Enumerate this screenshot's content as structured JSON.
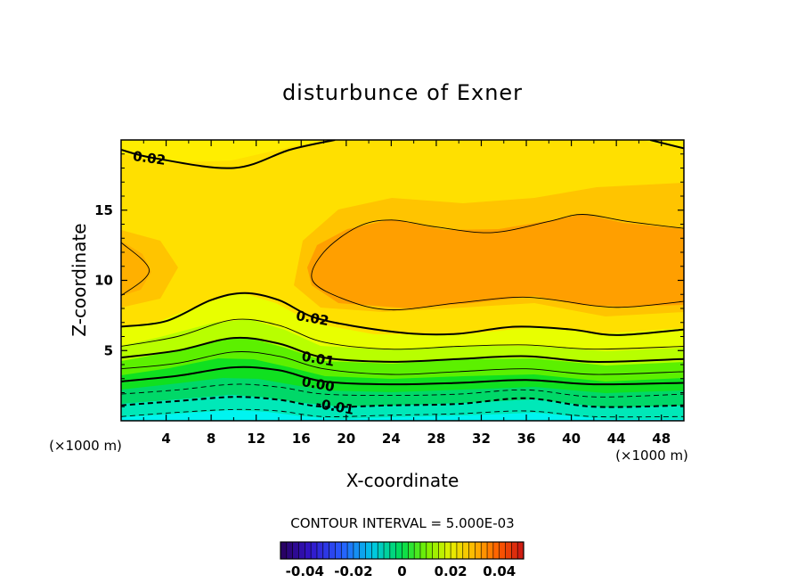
{
  "chart_data": {
    "type": "heatmap",
    "title": "disturbunce of Exner",
    "xlabel": "X-coordinate",
    "ylabel": "Z-coordinate",
    "x_unit": "(×1000 m)",
    "y_unit": "(×1000 m)",
    "xlim": [
      0,
      50
    ],
    "ylim": [
      0,
      20
    ],
    "x_ticks": [
      "4",
      "8",
      "12",
      "16",
      "20",
      "24",
      "28",
      "32",
      "36",
      "40",
      "44",
      "48"
    ],
    "y_ticks": [
      "5",
      "10",
      "15"
    ],
    "x_tick_values": [
      4,
      8,
      12,
      16,
      20,
      24,
      28,
      32,
      36,
      40,
      44,
      48
    ],
    "y_tick_values": [
      5,
      10,
      15
    ],
    "contour_labels": [
      "0.02",
      "0.02",
      "0.01",
      "0.00",
      "-0.01"
    ],
    "contour_label_positions": [
      [
        2.5,
        18.7
      ],
      [
        17,
        7.3
      ],
      [
        17.5,
        4.4
      ],
      [
        17.5,
        2.6
      ],
      [
        19,
        1.0
      ]
    ],
    "contour_interval_text": "CONTOUR INTERVAL = 5.000E-03",
    "contour_interval": 0.005,
    "colorbar": {
      "range": [
        -0.05,
        0.05
      ],
      "tick_labels": [
        "-0.04",
        "-0.02",
        "0",
        "0.02",
        "0.04"
      ],
      "tick_values": [
        -0.04,
        -0.02,
        0,
        0.02,
        0.04
      ]
    },
    "contour_lines": [
      {
        "level": 0.02,
        "points": [
          [
            0,
            19.3
          ],
          [
            3,
            18.7
          ],
          [
            10,
            18.0
          ],
          [
            15,
            19.3
          ],
          [
            19,
            20.0
          ]
        ]
      },
      {
        "level": 0.02,
        "points": [
          [
            47,
            20.0
          ],
          [
            50,
            19.4
          ]
        ]
      },
      {
        "level": 0.025,
        "points": [
          [
            0,
            12.7
          ],
          [
            2.5,
            10.7
          ],
          [
            0,
            8.9
          ]
        ]
      },
      {
        "level": 0.025,
        "points": [
          [
            50,
            8.5
          ],
          [
            45,
            8.1
          ],
          [
            42,
            8.2
          ],
          [
            36,
            8.8
          ],
          [
            30,
            8.4
          ],
          [
            24,
            7.9
          ],
          [
            20,
            8.6
          ],
          [
            17,
            10.0
          ],
          [
            18,
            12.0
          ],
          [
            21,
            13.8
          ],
          [
            24,
            14.3
          ],
          [
            28,
            13.8
          ],
          [
            33,
            13.4
          ],
          [
            38,
            14.2
          ],
          [
            41,
            14.7
          ],
          [
            45,
            14.2
          ],
          [
            50,
            13.7
          ]
        ]
      },
      {
        "level": 0.02,
        "points": [
          [
            0,
            6.7
          ],
          [
            4,
            7.1
          ],
          [
            8,
            8.6
          ],
          [
            11,
            9.1
          ],
          [
            14,
            8.6
          ],
          [
            17,
            7.4
          ],
          [
            21,
            6.7
          ],
          [
            26,
            6.2
          ],
          [
            30,
            6.2
          ],
          [
            35,
            6.7
          ],
          [
            40,
            6.5
          ],
          [
            44,
            6.1
          ],
          [
            50,
            6.5
          ]
        ]
      },
      {
        "level": 0.015,
        "points": [
          [
            0,
            5.3
          ],
          [
            5,
            6.0
          ],
          [
            10,
            7.2
          ],
          [
            14,
            6.8
          ],
          [
            18,
            5.6
          ],
          [
            24,
            5.1
          ],
          [
            30,
            5.3
          ],
          [
            36,
            5.4
          ],
          [
            42,
            5.1
          ],
          [
            50,
            5.3
          ]
        ]
      },
      {
        "level": 0.01,
        "points": [
          [
            0,
            4.5
          ],
          [
            5,
            5.0
          ],
          [
            10,
            5.9
          ],
          [
            14,
            5.5
          ],
          [
            18,
            4.5
          ],
          [
            24,
            4.2
          ],
          [
            30,
            4.4
          ],
          [
            36,
            4.6
          ],
          [
            42,
            4.2
          ],
          [
            50,
            4.4
          ]
        ]
      },
      {
        "level": 0.005,
        "points": [
          [
            0,
            3.7
          ],
          [
            5,
            4.1
          ],
          [
            10,
            4.9
          ],
          [
            14,
            4.6
          ],
          [
            18,
            3.7
          ],
          [
            24,
            3.3
          ],
          [
            30,
            3.5
          ],
          [
            36,
            3.7
          ],
          [
            42,
            3.3
          ],
          [
            50,
            3.5
          ]
        ]
      },
      {
        "level": 0.0,
        "points": [
          [
            0,
            2.8
          ],
          [
            5,
            3.2
          ],
          [
            10,
            3.8
          ],
          [
            14,
            3.6
          ],
          [
            18,
            2.8
          ],
          [
            24,
            2.6
          ],
          [
            30,
            2.7
          ],
          [
            36,
            2.9
          ],
          [
            42,
            2.6
          ],
          [
            50,
            2.7
          ]
        ]
      },
      {
        "level": -0.005,
        "points": [
          [
            0,
            1.9
          ],
          [
            5,
            2.2
          ],
          [
            10,
            2.6
          ],
          [
            14,
            2.4
          ],
          [
            18,
            1.9
          ],
          [
            24,
            1.8
          ],
          [
            30,
            1.9
          ],
          [
            36,
            2.2
          ],
          [
            42,
            1.7
          ],
          [
            50,
            1.9
          ]
        ]
      },
      {
        "level": -0.01,
        "points": [
          [
            0,
            1.1
          ],
          [
            5,
            1.4
          ],
          [
            10,
            1.7
          ],
          [
            14,
            1.5
          ],
          [
            18,
            1.0
          ],
          [
            24,
            1.1
          ],
          [
            30,
            1.2
          ],
          [
            36,
            1.6
          ],
          [
            42,
            1.0
          ],
          [
            50,
            1.1
          ]
        ]
      },
      {
        "level": -0.015,
        "points": [
          [
            0,
            0.3
          ],
          [
            5,
            0.6
          ],
          [
            10,
            0.8
          ],
          [
            14,
            0.7
          ],
          [
            18,
            0.3
          ],
          [
            24,
            0.4
          ],
          [
            30,
            0.5
          ],
          [
            36,
            0.7
          ],
          [
            42,
            0.3
          ],
          [
            50,
            0.3
          ]
        ]
      }
    ]
  }
}
